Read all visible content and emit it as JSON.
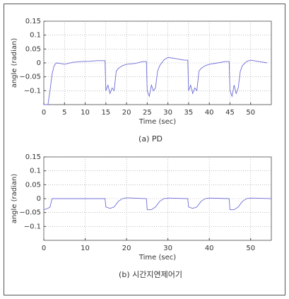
{
  "chart_data": [
    {
      "type": "line",
      "caption": "(a) PD",
      "xlabel": "Time (sec)",
      "ylabel": "angle (radian)",
      "color": "#6c6cd8",
      "grid": true,
      "xlim": [
        0,
        55
      ],
      "xticks": [
        0,
        5,
        10,
        15,
        20,
        25,
        30,
        35,
        40,
        45,
        50
      ],
      "ylim": [
        -0.15,
        0.15
      ],
      "yticks": [
        0.15,
        0.1,
        0.05,
        0,
        {
          "value": -0.05,
          "label": "−0.05"
        },
        {
          "value": -0.1,
          "label": "−0.1"
        }
      ],
      "x": [
        0,
        0.5,
        1,
        1.5,
        2,
        2.5,
        3,
        4,
        5,
        7,
        9,
        11,
        13,
        14.8,
        15,
        15.5,
        16,
        16.5,
        17,
        17.5,
        18,
        19,
        20,
        22,
        24,
        24.8,
        25,
        25.5,
        26,
        26.5,
        27,
        27.5,
        28,
        29,
        30,
        32,
        34,
        34.8,
        35,
        35.5,
        36,
        36.5,
        37,
        37.5,
        38,
        39,
        40,
        42,
        44,
        44.8,
        45,
        45.5,
        46,
        46.5,
        47,
        47.5,
        48,
        49,
        50,
        52,
        54
      ],
      "values": [
        -0.15,
        -0.15,
        -0.15,
        -0.1,
        -0.04,
        -0.01,
        0,
        -0.002,
        -0.005,
        0.002,
        0.005,
        0.006,
        0.008,
        0.008,
        -0.1,
        -0.08,
        -0.11,
        -0.09,
        -0.1,
        -0.03,
        -0.02,
        -0.01,
        -0.005,
        -0.002,
        0.005,
        0.005,
        -0.1,
        -0.12,
        -0.08,
        -0.1,
        -0.09,
        -0.03,
        -0.01,
        0.01,
        0.02,
        0.015,
        0.01,
        0.01,
        -0.1,
        -0.08,
        -0.11,
        -0.09,
        -0.1,
        -0.03,
        -0.02,
        -0.01,
        -0.005,
        0,
        0.005,
        0.005,
        -0.1,
        -0.12,
        -0.08,
        -0.11,
        -0.09,
        -0.03,
        -0.01,
        0.005,
        0.01,
        0.005,
        0
      ]
    },
    {
      "type": "line",
      "caption": "(b) 시간지연제어기",
      "xlabel": "Time (sec)",
      "ylabel": "angle (radian)",
      "color": "#6c6cd8",
      "grid": true,
      "xlim": [
        0,
        55
      ],
      "xticks": [
        0,
        10,
        20,
        30,
        40,
        50
      ],
      "ylim": [
        -0.15,
        0.15
      ],
      "yticks": [
        0.15,
        0.1,
        0.05,
        0,
        {
          "value": -0.05,
          "label": "−0.05"
        },
        {
          "value": -0.1,
          "label": "−0.1"
        }
      ],
      "x": [
        0,
        1,
        1.5,
        2,
        5,
        10,
        14.8,
        15,
        16,
        17,
        18,
        19,
        20,
        24.8,
        25,
        26,
        27,
        28,
        29,
        30,
        34.8,
        35,
        36,
        37,
        38,
        39,
        40,
        44.8,
        45,
        46,
        47,
        48,
        49,
        50,
        55
      ],
      "values": [
        -0.04,
        -0.035,
        -0.03,
        0,
        0,
        0,
        0,
        -0.03,
        -0.035,
        -0.03,
        -0.01,
        0,
        0.003,
        0,
        -0.04,
        -0.04,
        -0.03,
        -0.01,
        0,
        0.002,
        0,
        -0.03,
        -0.035,
        -0.03,
        -0.01,
        0,
        0.002,
        0,
        -0.04,
        -0.04,
        -0.03,
        -0.01,
        0,
        0.002,
        0
      ]
    }
  ]
}
